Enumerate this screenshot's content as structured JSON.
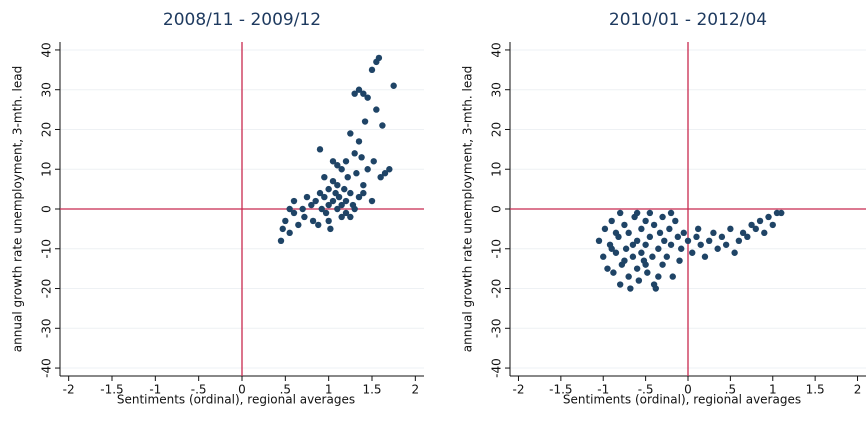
{
  "chart_data": [
    {
      "type": "scatter",
      "title": "2008/11 - 2009/12",
      "x_label": "Sentiments (ordinal), regional averages",
      "y_label": "annual growth rate unemployment, 3-mth. lead",
      "color": "#1f4466",
      "line_color": "#c8294f",
      "grid": true,
      "xline": 0,
      "yline": 0,
      "xlim": [
        -2.1,
        2.1
      ],
      "ylim": [
        -42,
        42
      ],
      "xticks": [
        -2,
        -1.5,
        -1,
        {
          "value": -0.5,
          "label": "-.5"
        },
        0,
        {
          "value": 0.5,
          "label": ".5"
        },
        1,
        1.5,
        2
      ],
      "yticks": [
        -40,
        -30,
        -20,
        -10,
        0,
        10,
        20,
        30,
        40
      ],
      "x": [
        0.45,
        0.47,
        0.5,
        0.55,
        0.6,
        0.6,
        0.65,
        0.7,
        0.72,
        0.75,
        0.8,
        0.82,
        0.85,
        0.88,
        0.9,
        0.9,
        0.92,
        0.95,
        0.97,
        1.0,
        1.0,
        1.02,
        1.05,
        1.05,
        1.08,
        1.1,
        1.1,
        1.12,
        1.15,
        1.15,
        1.18,
        1.2,
        1.2,
        1.22,
        1.25,
        1.25,
        1.28,
        1.3,
        1.3,
        1.32,
        1.35,
        1.35,
        1.38,
        1.4,
        1.4,
        1.42,
        1.45,
        1.45,
        1.5,
        1.5,
        1.52,
        1.55,
        1.55,
        1.58,
        1.6,
        1.62,
        1.65,
        1.7,
        1.75,
        1.2,
        1.3,
        0.95,
        1.1,
        1.35,
        0.55,
        1.0,
        1.15,
        1.4,
        1.25,
        1.05
      ],
      "y": [
        -8,
        -5,
        -3,
        -6,
        -1,
        2,
        -4,
        0,
        -2,
        3,
        1,
        -3,
        2,
        -4,
        4,
        15,
        0,
        3,
        -1,
        5,
        1,
        -5,
        7,
        2,
        4,
        0,
        6,
        3,
        10,
        -2,
        5,
        2,
        12,
        8,
        19,
        4,
        1,
        14,
        29,
        9,
        30,
        3,
        13,
        29,
        6,
        22,
        10,
        28,
        2,
        35,
        12,
        25,
        37,
        38,
        8,
        21,
        9,
        10,
        31,
        -1,
        0,
        8,
        11,
        17,
        0,
        -3,
        1,
        4,
        -2,
        12
      ]
    },
    {
      "type": "scatter",
      "title": "2010/01 - 2012/04",
      "x_label": "Sentiments (ordinal), regional averages",
      "y_label": "annual growth rate unemployment, 3-mth. lead",
      "color": "#1f4466",
      "line_color": "#c8294f",
      "grid": true,
      "xline": 0,
      "yline": 0,
      "xlim": [
        -2.1,
        2.1
      ],
      "ylim": [
        -42,
        42
      ],
      "xticks": [
        -2,
        -1.5,
        -1,
        {
          "value": -0.5,
          "label": "-.5"
        },
        0,
        {
          "value": 0.5,
          "label": ".5"
        },
        1,
        1.5,
        2
      ],
      "yticks": [
        -40,
        -30,
        -20,
        -10,
        0,
        10,
        20,
        30,
        40
      ],
      "x": [
        -1.05,
        -1.0,
        -0.98,
        -0.95,
        -0.92,
        -0.9,
        -0.88,
        -0.85,
        -0.82,
        -0.8,
        -0.8,
        -0.78,
        -0.75,
        -0.73,
        -0.7,
        -0.7,
        -0.68,
        -0.65,
        -0.63,
        -0.6,
        -0.6,
        -0.58,
        -0.55,
        -0.55,
        -0.52,
        -0.5,
        -0.5,
        -0.48,
        -0.45,
        -0.45,
        -0.42,
        -0.4,
        -0.4,
        -0.38,
        -0.35,
        -0.33,
        -0.3,
        -0.3,
        -0.28,
        -0.25,
        -0.22,
        -0.2,
        -0.18,
        -0.15,
        -0.12,
        -0.1,
        -0.08,
        -0.05,
        0,
        0.05,
        0.1,
        0.12,
        0.15,
        0.2,
        0.25,
        0.3,
        0.35,
        0.4,
        0.45,
        0.5,
        0.55,
        0.6,
        0.65,
        0.7,
        0.75,
        0.8,
        0.85,
        0.9,
        0.95,
        1.0,
        1.05,
        1.1,
        -0.85,
        -0.65,
        -0.5,
        -0.35,
        -0.75,
        -0.9,
        -0.6,
        -0.2
      ],
      "y": [
        -8,
        -12,
        -5,
        -15,
        -9,
        -3,
        -16,
        -11,
        -7,
        -19,
        -1,
        -14,
        -4,
        -10,
        -17,
        -6,
        -20,
        -12,
        -2,
        -8,
        -15,
        -18,
        -5,
        -11,
        -13,
        -3,
        -9,
        -16,
        -1,
        -7,
        -12,
        -19,
        -4,
        -20,
        -10,
        -6,
        -14,
        -2,
        -8,
        -12,
        -5,
        -9,
        -17,
        -3,
        -7,
        -13,
        -10,
        -6,
        -8,
        -11,
        -7,
        -5,
        -9,
        -12,
        -8,
        -6,
        -10,
        -7,
        -9,
        -5,
        -11,
        -8,
        -6,
        -7,
        -4,
        -5,
        -3,
        -6,
        -2,
        -4,
        -1,
        -1,
        -6,
        -9,
        -14,
        -17,
        -13,
        -10,
        -1,
        -1
      ]
    }
  ]
}
